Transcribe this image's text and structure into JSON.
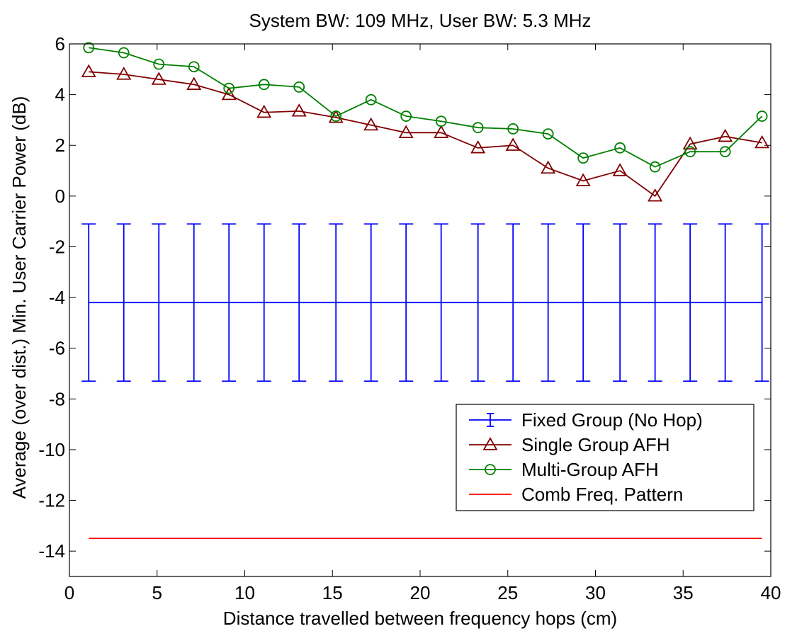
{
  "chart_data": {
    "type": "line",
    "title": "System BW: 109 MHz, User BW: 5.3 MHz",
    "xlabel": "Distance travelled between frequency hops (cm)",
    "ylabel": "Average (over dist.) Min. User Carrier Power (dB)",
    "xlim": [
      0,
      40
    ],
    "ylim": [
      -15,
      6
    ],
    "xticks": [
      0,
      5,
      10,
      15,
      20,
      25,
      30,
      35,
      40
    ],
    "xtick_labels": [
      "0",
      "5",
      "10",
      "15",
      "20",
      "25",
      "30",
      "35",
      "40"
    ],
    "yticks": [
      6,
      4,
      2,
      0,
      -2,
      -4,
      -6,
      -8,
      -10,
      -12,
      -14
    ],
    "ytick_labels": [
      "6",
      "4",
      "2",
      "0",
      "-2",
      "-4",
      "-6",
      "-8",
      "-10",
      "-12",
      "-14"
    ],
    "grid": false,
    "legend_position": "lower-right",
    "series": [
      {
        "name": "Fixed Group (No Hop)",
        "style": "errorbar",
        "color": "#0000ff",
        "x": [
          1.1,
          3.1,
          5.1,
          7.1,
          9.1,
          11.1,
          13.1,
          15.2,
          17.2,
          19.2,
          21.2,
          23.3,
          25.3,
          27.3,
          29.3,
          31.4,
          33.4,
          35.4,
          37.4,
          39.5
        ],
        "y": [
          -4.2,
          -4.2,
          -4.2,
          -4.2,
          -4.2,
          -4.2,
          -4.2,
          -4.2,
          -4.2,
          -4.2,
          -4.2,
          -4.2,
          -4.2,
          -4.2,
          -4.2,
          -4.2,
          -4.2,
          -4.2,
          -4.2,
          -4.2
        ],
        "yerr_low": -7.3,
        "yerr_high": -1.1
      },
      {
        "name": "Single Group AFH",
        "style": "line-marker",
        "marker": "triangle",
        "color": "#800000",
        "x": [
          1.1,
          3.1,
          5.1,
          7.1,
          9.1,
          11.1,
          13.1,
          15.2,
          17.2,
          19.2,
          21.2,
          23.3,
          25.3,
          27.3,
          29.3,
          31.4,
          33.4,
          35.4,
          37.4,
          39.5
        ],
        "y": [
          4.9,
          4.8,
          4.6,
          4.4,
          4.0,
          3.3,
          3.35,
          3.1,
          2.8,
          2.5,
          2.5,
          1.9,
          2.0,
          1.1,
          0.6,
          1.0,
          0.0,
          2.05,
          2.35,
          2.1
        ]
      },
      {
        "name": "Multi-Group AFH",
        "style": "line-marker",
        "marker": "circle",
        "color": "#008000",
        "x": [
          1.1,
          3.1,
          5.1,
          7.1,
          9.1,
          11.1,
          13.1,
          15.2,
          17.2,
          19.2,
          21.2,
          23.3,
          25.3,
          27.3,
          29.3,
          31.4,
          33.4,
          35.4,
          37.4,
          39.5
        ],
        "y": [
          5.85,
          5.65,
          5.2,
          5.1,
          4.25,
          4.4,
          4.3,
          3.15,
          3.8,
          3.15,
          2.95,
          2.7,
          2.65,
          2.45,
          1.5,
          1.9,
          1.15,
          1.75,
          1.75,
          3.15
        ]
      },
      {
        "name": "Comb Freq. Pattern",
        "style": "line",
        "color": "#ff0000",
        "x": [
          1.1,
          39.5
        ],
        "y": [
          -13.5,
          -13.5
        ]
      }
    ]
  }
}
